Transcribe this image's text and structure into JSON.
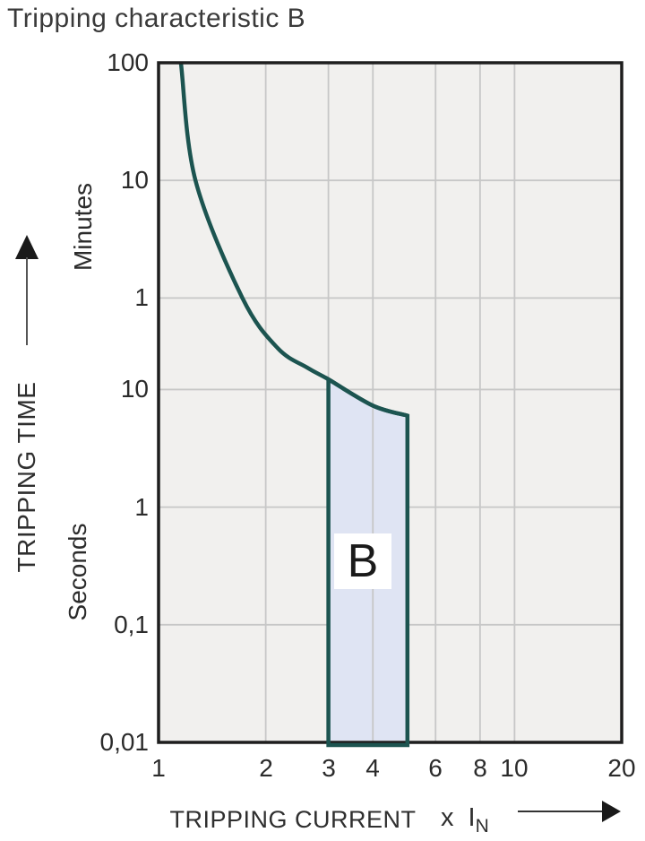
{
  "title": "Tripping characteristic B",
  "y_axis": {
    "name": "TRIPPING TIME",
    "unit_upper": "Minutes",
    "unit_lower": "Seconds",
    "range_seconds": [
      0.01,
      6000
    ],
    "ticks": [
      {
        "label": "100",
        "t": 6000
      },
      {
        "label": "10",
        "t": 600
      },
      {
        "label": "1",
        "t": 60
      },
      {
        "label": "10",
        "t": 10
      },
      {
        "label": "1",
        "t": 1
      },
      {
        "label": "0,1",
        "t": 0.1
      },
      {
        "label": "0,01",
        "t": 0.01
      }
    ]
  },
  "x_axis": {
    "name": "TRIPPING CURRENT",
    "multiplier_label": "x I",
    "multiplier_sub": "N",
    "range": [
      1,
      20
    ],
    "ticks": [
      {
        "label": "1",
        "v": 1
      },
      {
        "label": "2",
        "v": 2
      },
      {
        "label": "3",
        "v": 3
      },
      {
        "label": "4",
        "v": 4
      },
      {
        "label": "6",
        "v": 6
      },
      {
        "label": "8",
        "v": 8
      },
      {
        "label": "10",
        "v": 10
      },
      {
        "label": "20",
        "v": 20
      }
    ],
    "gridlines": [
      2,
      3,
      4,
      6,
      8,
      10
    ]
  },
  "chart_data": {
    "type": "line",
    "title": "Tripping characteristic B",
    "x_scale": "log",
    "y_scale": "log",
    "xlabel": "TRIPPING CURRENT x IN",
    "ylabel": "TRIPPING TIME",
    "xlim": [
      1,
      20
    ],
    "ylim_seconds": [
      0.01,
      6000
    ],
    "series": [
      {
        "name": "tripping-limit-curve",
        "units": [
          "multiple of In",
          "seconds"
        ],
        "points": [
          [
            1.13,
            8000
          ],
          [
            1.155,
            6000
          ],
          [
            1.27,
            600
          ],
          [
            1.72,
            60
          ],
          [
            2.16,
            22.5
          ],
          [
            2.62,
            15.3
          ],
          [
            3.0,
            12.2
          ],
          [
            4.0,
            7.3
          ],
          [
            5.0,
            6.0
          ]
        ]
      }
    ],
    "band": {
      "label": "B",
      "x_from": 3,
      "x_to": 5,
      "top_points": [
        [
          3.0,
          12.2
        ],
        [
          4.0,
          7.3
        ],
        [
          5.0,
          6.0
        ]
      ],
      "t_bottom": 0.01
    },
    "grid": "on",
    "legend": "none"
  },
  "colors": {
    "curve": "#1c5450",
    "band_fill": "#dfe4f3",
    "plot_bg": "#f1f0ee",
    "grid": "#c7c7c7",
    "border": "#1e1e1e",
    "text": "#2b2b2b"
  }
}
